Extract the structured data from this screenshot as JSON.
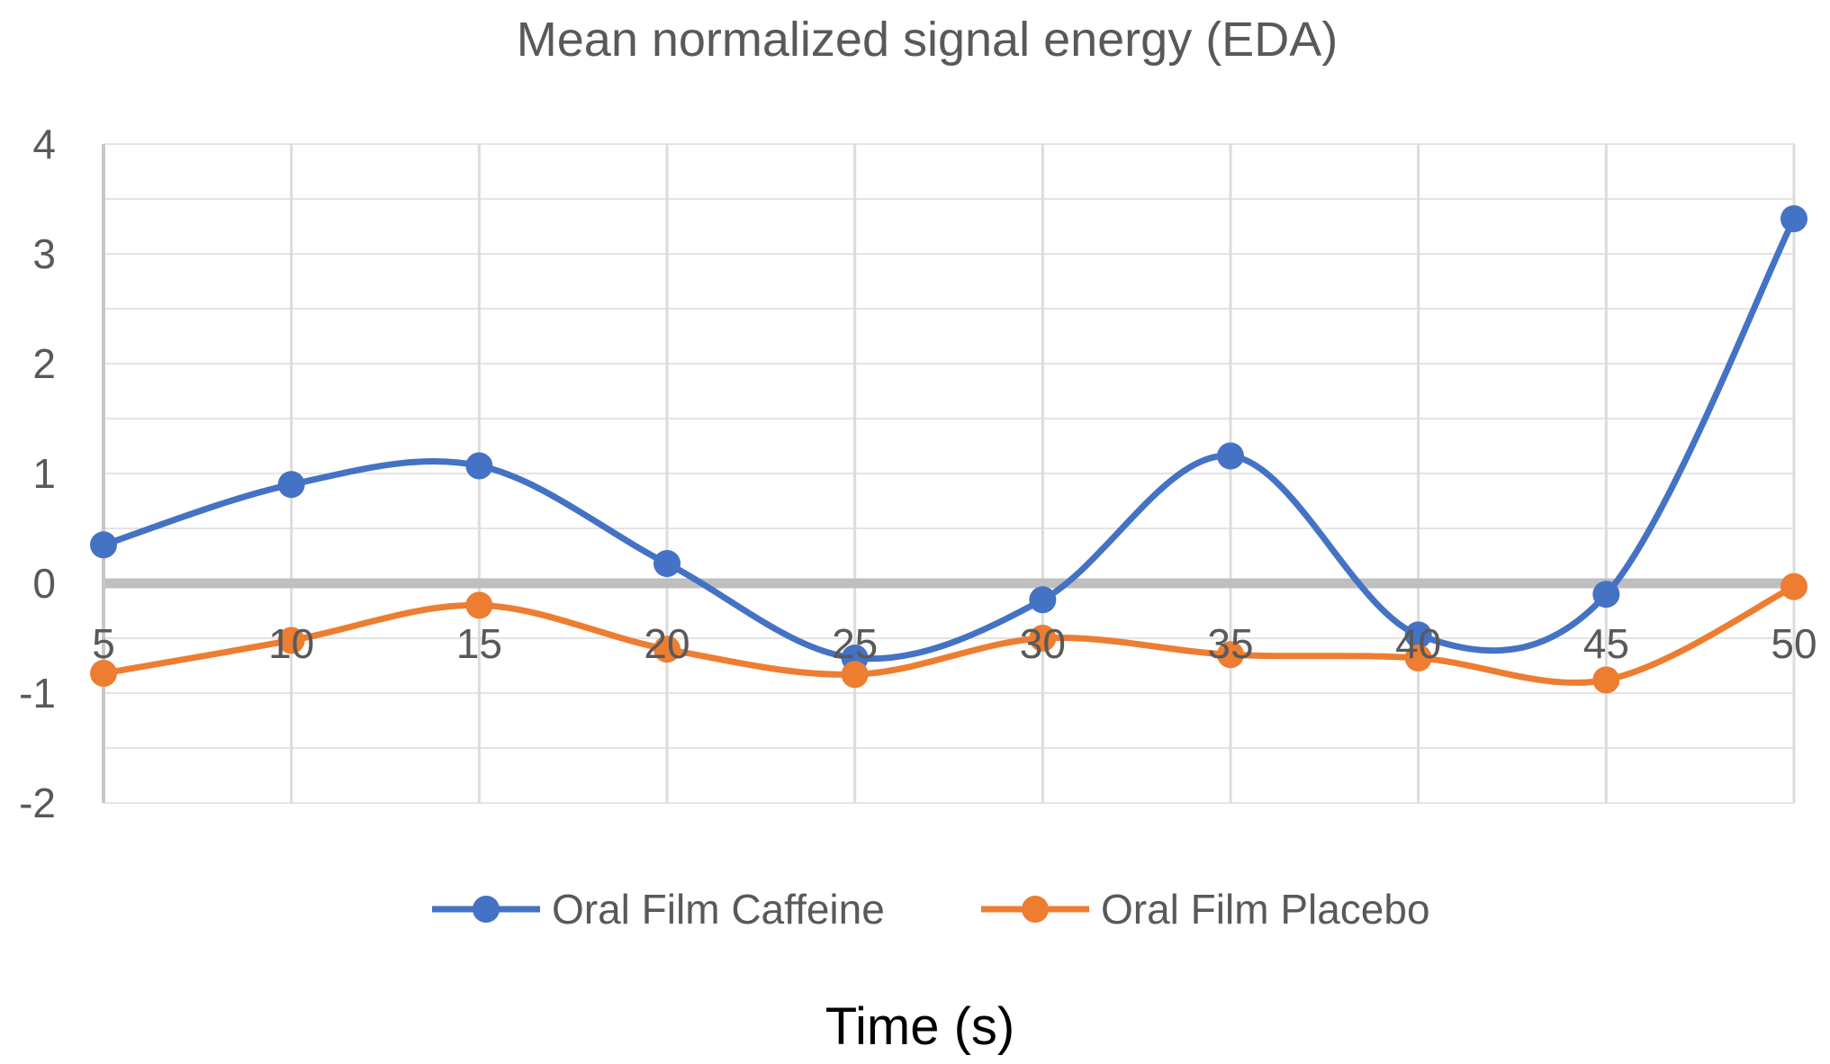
{
  "chart_data": {
    "type": "line",
    "title": "Mean normalized signal energy (EDA)",
    "xlabel": "Time (s)",
    "ylabel": "",
    "x": [
      5,
      10,
      15,
      20,
      25,
      30,
      35,
      40,
      45,
      50
    ],
    "ylim": [
      -2,
      4
    ],
    "yticks": [
      4,
      3,
      2,
      1,
      0,
      -1,
      -2
    ],
    "smooth": true,
    "grid": true,
    "legend_position": "bottom",
    "series": [
      {
        "name": "Oral Film Caffeine",
        "color": "#4472C4",
        "values": [
          0.35,
          0.9,
          1.07,
          0.18,
          -0.68,
          -0.15,
          1.16,
          -0.47,
          -0.1,
          3.32
        ]
      },
      {
        "name": "Oral Film Placebo",
        "color": "#ED7D31",
        "values": [
          -0.82,
          -0.52,
          -0.2,
          -0.6,
          -0.83,
          -0.5,
          -0.65,
          -0.68,
          -0.88,
          -0.03
        ]
      }
    ]
  }
}
